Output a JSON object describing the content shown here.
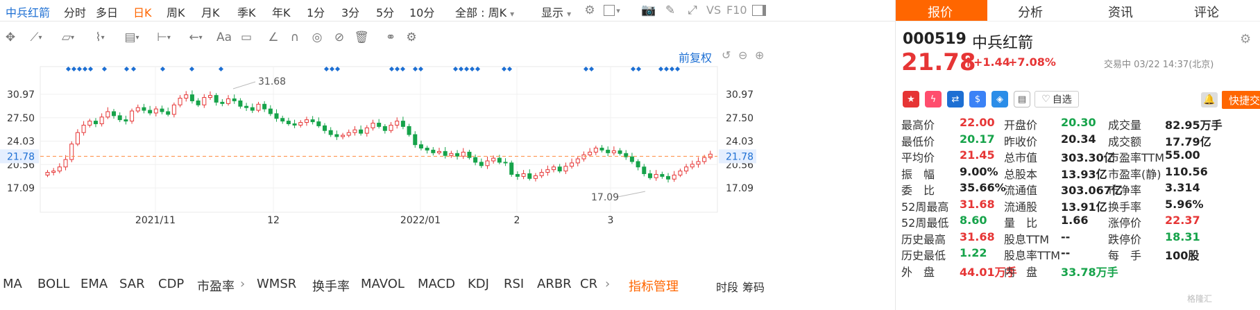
{
  "toolbar": {
    "stock_name": "中兵红箭",
    "periods": [
      "分时",
      "多日",
      "日K",
      "周K",
      "月K",
      "季K",
      "年K",
      "1分",
      "3分",
      "5分",
      "10分"
    ],
    "active_period": "日K",
    "range_select": "全部 : 周K",
    "display_label": "显示",
    "compare_label": "VS",
    "f10_label": "F10"
  },
  "chart": {
    "adjust_label": "前复权",
    "price_levels": [
      "30.97",
      "27.50",
      "24.03",
      "20.56",
      "17.09"
    ],
    "current_price_tag": "21.78",
    "high_marker": "31.68",
    "low_marker": "17.09",
    "x_labels": [
      "2021/11",
      "12",
      "2022/01",
      "2",
      "3"
    ],
    "colors": {
      "up": "#e63535",
      "down": "#16a34a",
      "dash": "#ff8a3d",
      "diamond": "#1d6fd3"
    }
  },
  "chart_data": {
    "type": "candlestick",
    "high_label": 31.68,
    "low_label": 17.09,
    "current": 21.78,
    "ylim": [
      17.09,
      30.97
    ],
    "x_ticks": [
      "2021/11",
      "12",
      "2022/01",
      "2",
      "3"
    ]
  },
  "indicators": {
    "items": [
      "MA",
      "BOLL",
      "EMA",
      "SAR",
      "CDP",
      "市盈率",
      "WMSR",
      "换手率",
      "MAVOL",
      "MACD",
      "KDJ",
      "RSI",
      "ARBR",
      "CR"
    ],
    "manage_label": "指标管理",
    "right_items": [
      "时段",
      "筹码"
    ]
  },
  "panel": {
    "tabs": [
      "报价",
      "分析",
      "资讯",
      "评论"
    ],
    "code": "000519",
    "name": "中兵红箭",
    "price": "21.78",
    "change": "+1.44",
    "change_pct": "+7.08%",
    "status": "交易中 03/22 14:37(北京)",
    "watchlist_label": "自选",
    "quick_trade_label": "快捷交易",
    "stats_col1": [
      {
        "label": "最高价",
        "value": "22.00",
        "color": "red"
      },
      {
        "label": "最低价",
        "value": "20.17",
        "color": "green"
      },
      {
        "label": "平均价",
        "value": "21.45",
        "color": "red"
      },
      {
        "label": "振　幅",
        "value": "9.00%",
        "color": "blk"
      },
      {
        "label": "委　比",
        "value": "35.66%",
        "color": "blk"
      },
      {
        "label": "52周最高",
        "value": "31.68",
        "color": "red"
      },
      {
        "label": "52周最低",
        "value": "8.60",
        "color": "green"
      },
      {
        "label": "历史最高",
        "value": "31.68",
        "color": "red"
      },
      {
        "label": "历史最低",
        "value": "1.22",
        "color": "green"
      },
      {
        "label": "外　盘",
        "value": "44.01万手",
        "color": "red"
      }
    ],
    "stats_col2": [
      {
        "label": "开盘价",
        "value": "20.30",
        "color": "green"
      },
      {
        "label": "昨收价",
        "value": "20.34",
        "color": "blk"
      },
      {
        "label": "总市值",
        "value": "303.30亿",
        "color": "blk"
      },
      {
        "label": "总股本",
        "value": "13.93亿",
        "color": "blk"
      },
      {
        "label": "流通值",
        "value": "303.067亿",
        "color": "blk"
      },
      {
        "label": "流通股",
        "value": "13.91亿",
        "color": "blk"
      },
      {
        "label": "量　比",
        "value": "1.66",
        "color": "blk"
      },
      {
        "label": "股息TTM",
        "value": "--",
        "color": "blk"
      },
      {
        "label": "股息率TTM",
        "value": "--",
        "color": "blk"
      },
      {
        "label": "内　盘",
        "value": "33.78万手",
        "color": "green"
      }
    ],
    "stats_col3": [
      {
        "label": "成交量",
        "value": "82.95万手",
        "color": "blk"
      },
      {
        "label": "成交额",
        "value": "17.79亿",
        "color": "blk"
      },
      {
        "label": "市盈率TTM",
        "value": "55.00",
        "color": "blk"
      },
      {
        "label": "市盈率(静)",
        "value": "110.56",
        "color": "blk"
      },
      {
        "label": "市净率",
        "value": "3.314",
        "color": "blk"
      },
      {
        "label": "换手率",
        "value": "5.96%",
        "color": "blk"
      },
      {
        "label": "涨停价",
        "value": "22.37",
        "color": "red"
      },
      {
        "label": "跌停价",
        "value": "18.31",
        "color": "green"
      },
      {
        "label": "每　手",
        "value": "100股",
        "color": "blk"
      }
    ],
    "watermark": "格隆汇"
  }
}
